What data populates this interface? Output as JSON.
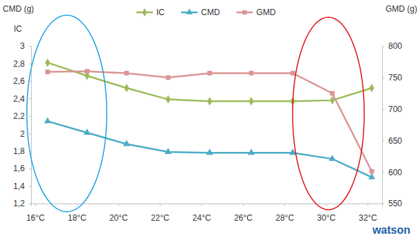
{
  "chart_data": {
    "type": "line",
    "y_labels": [
      "CMD (g)",
      "IC"
    ],
    "y2_label": "GMD (g)",
    "x": [
      16.6,
      18.5,
      20.4,
      22.4,
      24.4,
      26.4,
      28.4,
      30.3,
      32.2
    ],
    "xlim": [
      15.8,
      32.7
    ],
    "xticks": [
      {
        "value": 16,
        "label": "16°C"
      },
      {
        "value": 18,
        "label": "18°C"
      },
      {
        "value": 20,
        "label": "20°C"
      },
      {
        "value": 22,
        "label": "22°C"
      },
      {
        "value": 24,
        "label": "24°C"
      },
      {
        "value": 26,
        "label": "26°C"
      },
      {
        "value": 28,
        "label": "28°C"
      },
      {
        "value": 30,
        "label": "30°C"
      },
      {
        "value": 32,
        "label": "32°C"
      }
    ],
    "ylim": [
      1.2,
      3
    ],
    "yticks": [
      {
        "value": 1.2,
        "label": "1,2"
      },
      {
        "value": 1.4,
        "label": "1,4"
      },
      {
        "value": 1.6,
        "label": "1,6"
      },
      {
        "value": 1.8,
        "label": "1,8"
      },
      2,
      {
        "value": 2.2,
        "label": "2,2"
      },
      {
        "value": 2.4,
        "label": "2,4"
      },
      {
        "value": 2.6,
        "label": "2,6"
      },
      {
        "value": 2.8,
        "label": "2,8"
      },
      3
    ],
    "y2lim": [
      550,
      800
    ],
    "y2ticks": [
      550,
      600,
      650,
      700,
      750,
      800
    ],
    "grid": false,
    "legend": "top",
    "series": [
      {
        "name": "IC",
        "color": "#9bbb59",
        "marker": "diamond",
        "values": [
          2.81,
          2.66,
          2.52,
          2.39,
          2.37,
          2.37,
          2.37,
          2.38,
          2.52
        ]
      },
      {
        "name": "CMD",
        "color": "#4bacc6",
        "marker": "triangle",
        "values": [
          2.14,
          2.01,
          1.88,
          1.79,
          1.78,
          1.78,
          1.78,
          1.71,
          1.5
        ]
      },
      {
        "name": "GMD",
        "color": "#d99594",
        "marker": "square",
        "axis": "y2",
        "values": [
          759,
          760,
          757,
          750,
          757,
          757,
          757,
          725,
          601
        ]
      }
    ],
    "annotations": [
      {
        "text": "watson"
      }
    ]
  }
}
